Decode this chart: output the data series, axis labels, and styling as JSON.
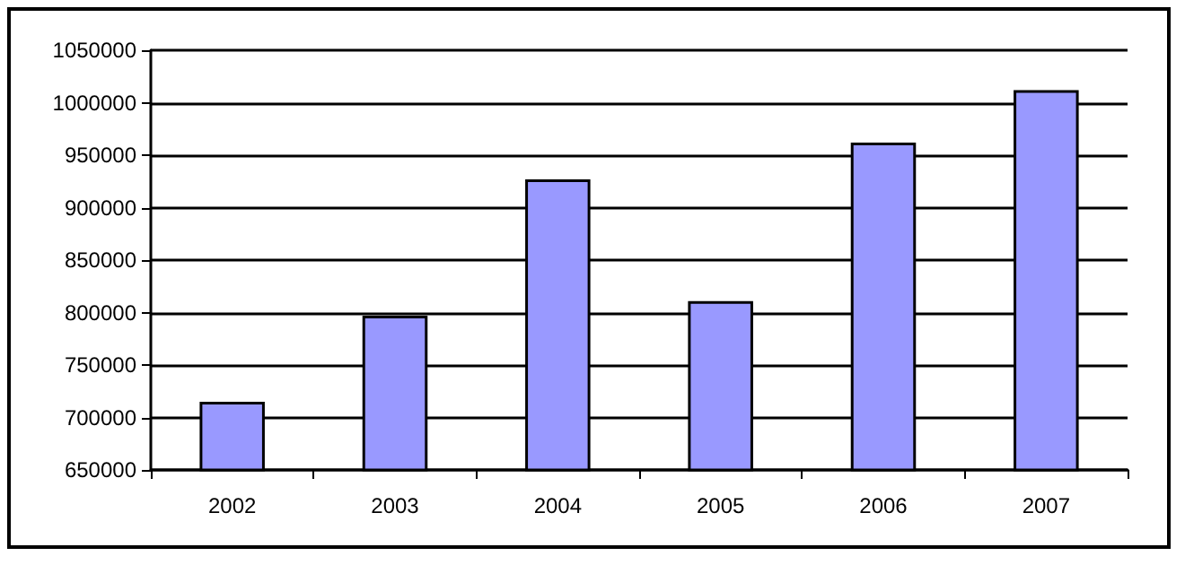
{
  "chart_data": {
    "type": "bar",
    "categories": [
      "2002",
      "2003",
      "2004",
      "2005",
      "2006",
      "2007"
    ],
    "values": [
      715000,
      797000,
      927000,
      811000,
      962000,
      1012000
    ],
    "color": "#9999ff",
    "ylim": [
      650000,
      1050000
    ],
    "yticks": [
      650000,
      700000,
      750000,
      800000,
      850000,
      900000,
      950000,
      1000000,
      1050000
    ],
    "grid": "y"
  }
}
